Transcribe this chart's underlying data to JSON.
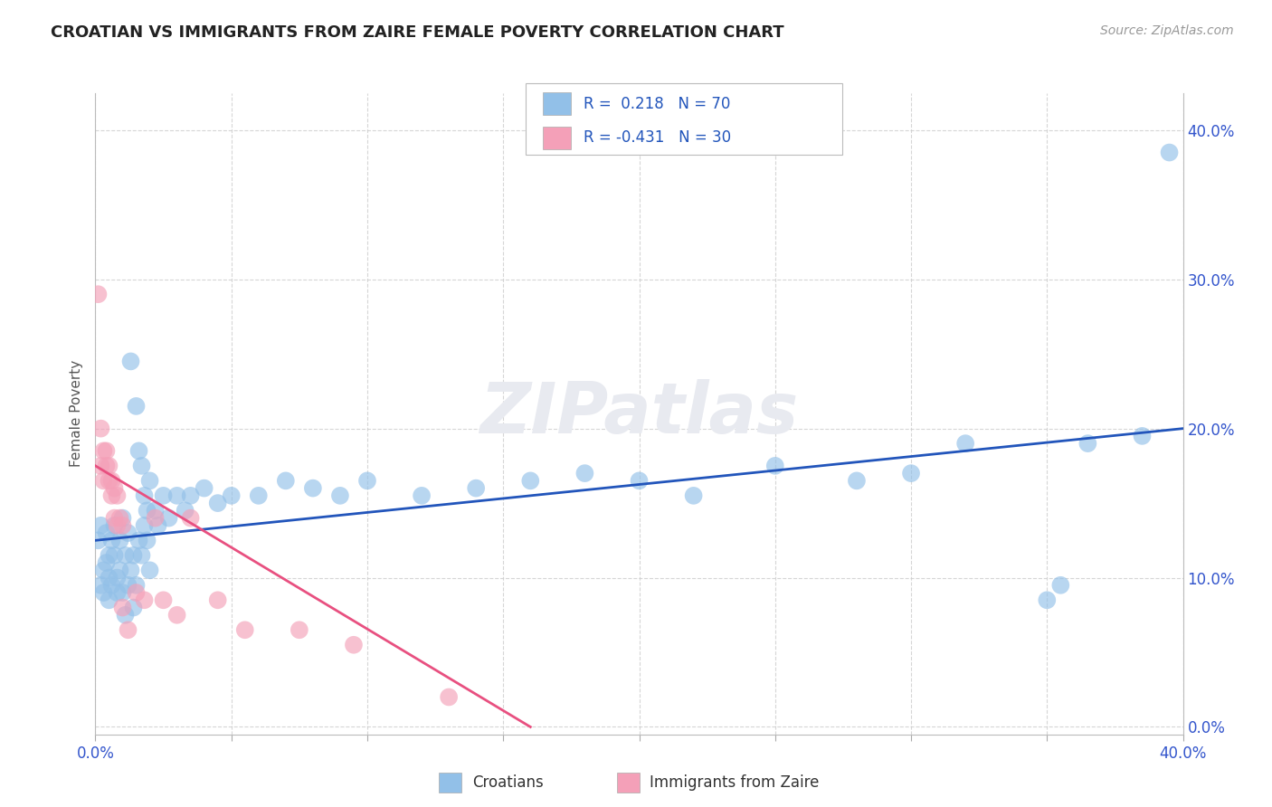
{
  "title": "CROATIAN VS IMMIGRANTS FROM ZAIRE FEMALE POVERTY CORRELATION CHART",
  "source": "Source: ZipAtlas.com",
  "ylabel": "Female Poverty",
  "xlim": [
    0.0,
    0.4
  ],
  "ylim": [
    -0.005,
    0.425
  ],
  "blue_color": "#92C0E8",
  "pink_color": "#F4A0B8",
  "blue_line_color": "#2255BB",
  "pink_line_color": "#E85080",
  "R_blue": 0.218,
  "N_blue": 70,
  "R_pink": -0.431,
  "N_pink": 30,
  "watermark": "ZIPatlas",
  "legend_label_blue": "Croatians",
  "legend_label_pink": "Immigrants from Zaire",
  "blue_points": [
    [
      0.001,
      0.125
    ],
    [
      0.002,
      0.095
    ],
    [
      0.002,
      0.135
    ],
    [
      0.003,
      0.105
    ],
    [
      0.003,
      0.09
    ],
    [
      0.004,
      0.11
    ],
    [
      0.004,
      0.13
    ],
    [
      0.005,
      0.115
    ],
    [
      0.005,
      0.1
    ],
    [
      0.005,
      0.085
    ],
    [
      0.006,
      0.125
    ],
    [
      0.006,
      0.095
    ],
    [
      0.007,
      0.115
    ],
    [
      0.007,
      0.135
    ],
    [
      0.008,
      0.1
    ],
    [
      0.008,
      0.09
    ],
    [
      0.009,
      0.125
    ],
    [
      0.009,
      0.105
    ],
    [
      0.01,
      0.14
    ],
    [
      0.01,
      0.09
    ],
    [
      0.011,
      0.115
    ],
    [
      0.011,
      0.075
    ],
    [
      0.012,
      0.13
    ],
    [
      0.012,
      0.095
    ],
    [
      0.013,
      0.245
    ],
    [
      0.013,
      0.105
    ],
    [
      0.014,
      0.08
    ],
    [
      0.014,
      0.115
    ],
    [
      0.015,
      0.215
    ],
    [
      0.015,
      0.095
    ],
    [
      0.016,
      0.185
    ],
    [
      0.016,
      0.125
    ],
    [
      0.017,
      0.175
    ],
    [
      0.017,
      0.115
    ],
    [
      0.018,
      0.155
    ],
    [
      0.018,
      0.135
    ],
    [
      0.019,
      0.145
    ],
    [
      0.019,
      0.125
    ],
    [
      0.02,
      0.165
    ],
    [
      0.02,
      0.105
    ],
    [
      0.022,
      0.145
    ],
    [
      0.023,
      0.135
    ],
    [
      0.025,
      0.155
    ],
    [
      0.027,
      0.14
    ],
    [
      0.03,
      0.155
    ],
    [
      0.033,
      0.145
    ],
    [
      0.035,
      0.155
    ],
    [
      0.04,
      0.16
    ],
    [
      0.045,
      0.15
    ],
    [
      0.05,
      0.155
    ],
    [
      0.06,
      0.155
    ],
    [
      0.07,
      0.165
    ],
    [
      0.08,
      0.16
    ],
    [
      0.09,
      0.155
    ],
    [
      0.1,
      0.165
    ],
    [
      0.12,
      0.155
    ],
    [
      0.14,
      0.16
    ],
    [
      0.16,
      0.165
    ],
    [
      0.18,
      0.17
    ],
    [
      0.2,
      0.165
    ],
    [
      0.22,
      0.155
    ],
    [
      0.25,
      0.175
    ],
    [
      0.28,
      0.165
    ],
    [
      0.3,
      0.17
    ],
    [
      0.32,
      0.19
    ],
    [
      0.35,
      0.085
    ],
    [
      0.355,
      0.095
    ],
    [
      0.365,
      0.19
    ],
    [
      0.385,
      0.195
    ],
    [
      0.395,
      0.385
    ]
  ],
  "pink_points": [
    [
      0.001,
      0.29
    ],
    [
      0.002,
      0.2
    ],
    [
      0.002,
      0.175
    ],
    [
      0.003,
      0.185
    ],
    [
      0.003,
      0.165
    ],
    [
      0.004,
      0.175
    ],
    [
      0.004,
      0.185
    ],
    [
      0.005,
      0.165
    ],
    [
      0.005,
      0.175
    ],
    [
      0.006,
      0.155
    ],
    [
      0.006,
      0.165
    ],
    [
      0.007,
      0.16
    ],
    [
      0.007,
      0.14
    ],
    [
      0.008,
      0.155
    ],
    [
      0.008,
      0.135
    ],
    [
      0.009,
      0.14
    ],
    [
      0.01,
      0.135
    ],
    [
      0.01,
      0.08
    ],
    [
      0.012,
      0.065
    ],
    [
      0.015,
      0.09
    ],
    [
      0.018,
      0.085
    ],
    [
      0.022,
      0.14
    ],
    [
      0.025,
      0.085
    ],
    [
      0.03,
      0.075
    ],
    [
      0.035,
      0.14
    ],
    [
      0.045,
      0.085
    ],
    [
      0.055,
      0.065
    ],
    [
      0.075,
      0.065
    ],
    [
      0.095,
      0.055
    ],
    [
      0.13,
      0.02
    ]
  ],
  "blue_line_x": [
    0.0,
    0.4
  ],
  "blue_line_y": [
    0.125,
    0.2
  ],
  "pink_line_x": [
    0.0,
    0.16
  ],
  "pink_line_y": [
    0.175,
    0.0
  ]
}
